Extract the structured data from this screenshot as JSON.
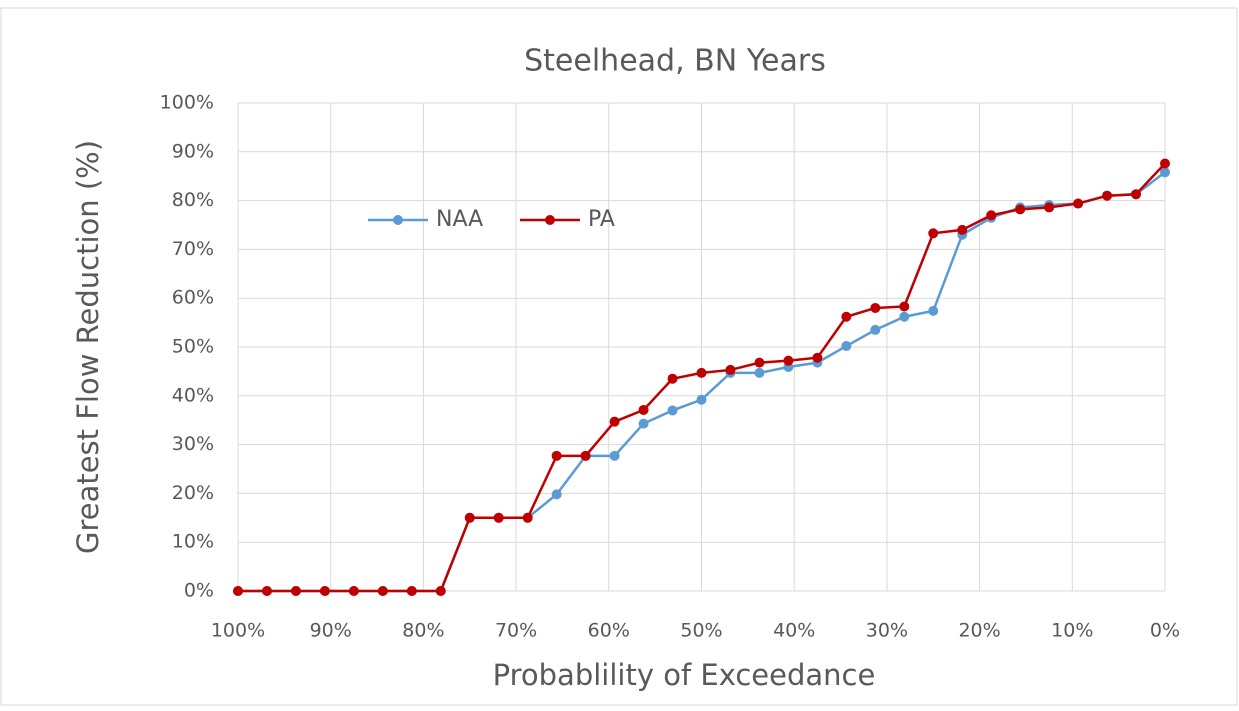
{
  "chart_data": {
    "type": "line",
    "title": "Steelhead,  BN Years",
    "x_label": "Probablility of Exceedance",
    "y_label": "Greatest Flow Reduction (%)",
    "x": [
      100,
      96.875,
      93.75,
      90.625,
      87.5,
      84.375,
      81.25,
      78.125,
      75,
      71.875,
      68.75,
      65.625,
      62.5,
      59.375,
      56.25,
      53.125,
      50,
      46.875,
      43.75,
      40.625,
      37.5,
      34.375,
      31.25,
      28.125,
      25,
      21.875,
      18.75,
      15.625,
      12.5,
      9.375,
      6.25,
      3.125,
      0
    ],
    "series": [
      {
        "name": "NAA",
        "color": "#5b9bd5",
        "values": [
          0,
          0,
          0,
          0,
          0,
          0,
          0,
          0,
          15,
          15,
          15,
          19.8,
          27.7,
          27.7,
          34.3,
          37,
          39.2,
          44.7,
          44.7,
          45.9,
          46.8,
          50.2,
          53.5,
          56.2,
          57.4,
          73,
          76.5,
          78.6,
          79.1,
          79.4,
          81,
          81.3,
          85.8
        ]
      },
      {
        "name": "PA",
        "color": "#c00000",
        "values": [
          0,
          0,
          0,
          0,
          0,
          0,
          0,
          0,
          15,
          15,
          15,
          27.7,
          27.7,
          34.7,
          37.1,
          43.5,
          44.7,
          45.3,
          46.8,
          47.2,
          47.8,
          56.2,
          58,
          58.3,
          73.3,
          74,
          77,
          78.2,
          78.6,
          79.4,
          81,
          81.3,
          87.6
        ]
      }
    ],
    "xlim": [
      100,
      0
    ],
    "xticks": [
      {
        "value": 100,
        "label": "100%"
      },
      {
        "value": 90,
        "label": "90%"
      },
      {
        "value": 80,
        "label": "80%"
      },
      {
        "value": 70,
        "label": "70%"
      },
      {
        "value": 60,
        "label": "60%"
      },
      {
        "value": 50,
        "label": "50%"
      },
      {
        "value": 40,
        "label": "40%"
      },
      {
        "value": 30,
        "label": "30%"
      },
      {
        "value": 20,
        "label": "20%"
      },
      {
        "value": 10,
        "label": "10%"
      },
      {
        "value": 0,
        "label": "0%"
      }
    ],
    "ylim": [
      0,
      100
    ],
    "yticks": [
      {
        "value": 0,
        "label": "0%"
      },
      {
        "value": 10,
        "label": "10%"
      },
      {
        "value": 20,
        "label": "20%"
      },
      {
        "value": 30,
        "label": "30%"
      },
      {
        "value": 40,
        "label": "40%"
      },
      {
        "value": 50,
        "label": "50%"
      },
      {
        "value": 60,
        "label": "60%"
      },
      {
        "value": 70,
        "label": "70%"
      },
      {
        "value": 80,
        "label": "80%"
      },
      {
        "value": 90,
        "label": "90%"
      },
      {
        "value": 100,
        "label": "100%"
      }
    ],
    "grid": true,
    "legend": "upper left"
  }
}
